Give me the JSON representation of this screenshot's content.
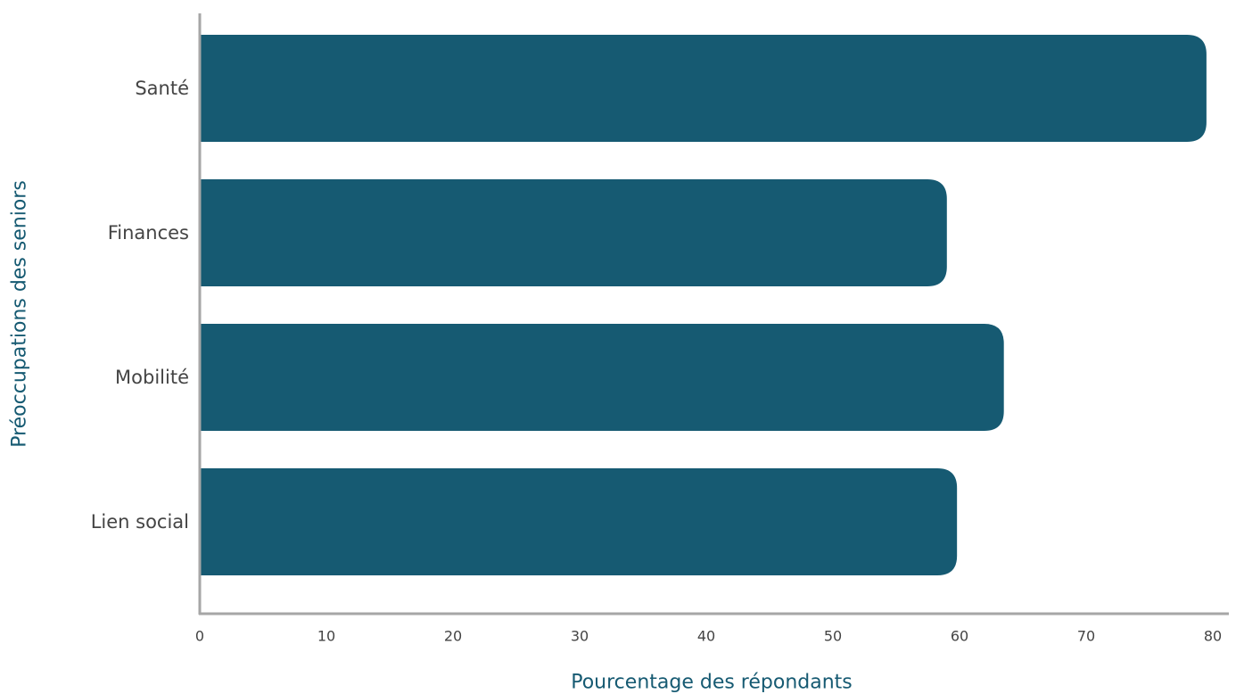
{
  "chart_data": {
    "type": "bar",
    "orientation": "horizontal",
    "categories": [
      "Santé",
      "Finances",
      "Mobilité",
      "Lien social"
    ],
    "values": [
      79.5,
      59,
      63.5,
      59.8
    ],
    "title": "",
    "xlabel": "Pourcentage des répondants",
    "ylabel": "Préoccupations des seniors",
    "xlim": [
      0,
      80
    ],
    "xticks": [
      "0",
      "10",
      "20",
      "30",
      "40",
      "50",
      "60",
      "70",
      "80"
    ],
    "grid": false,
    "legend": "none",
    "colors": {
      "bar": "#165a72",
      "axis": "#a6a6a6",
      "axis_title": "#165a72",
      "tick_text": "#444444"
    }
  }
}
